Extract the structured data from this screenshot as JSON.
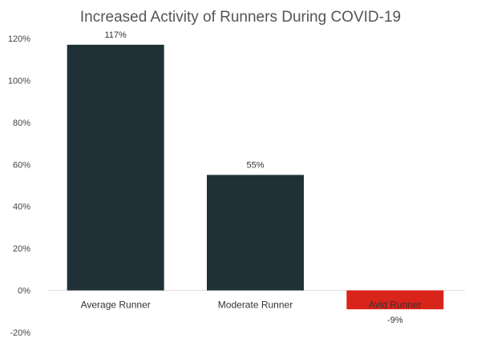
{
  "chart_data": {
    "type": "bar",
    "title": "Increased Activity of Runners During COVID-19",
    "xlabel": "",
    "ylabel": "",
    "categories": [
      "Average Runner",
      "Moderate Runner",
      "Avid Runner"
    ],
    "values": [
      117,
      55,
      -9
    ],
    "value_labels": [
      "117%",
      "55%",
      "-9%"
    ],
    "bar_colors": [
      "#1f3136",
      "#1f3136",
      "#d9241b"
    ],
    "ylim": [
      -20,
      120
    ],
    "yticks": [
      -20,
      0,
      20,
      40,
      60,
      80,
      100,
      120
    ],
    "ytick_labels": [
      "-20%",
      "0%",
      "20%",
      "40%",
      "60%",
      "80%",
      "100%",
      "120%"
    ],
    "grid": false,
    "legend": "none",
    "zero_line_color": "#d9d9d9"
  }
}
